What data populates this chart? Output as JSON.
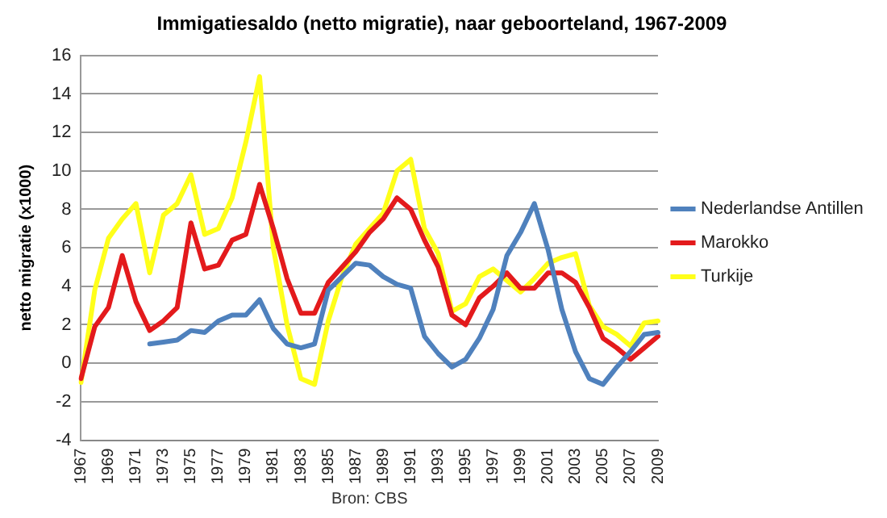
{
  "chart_data": {
    "type": "line",
    "title": "Immigatiesaldo (netto migratie), naar geboorteland, 1967-2009",
    "ylabel": "netto migratie (x1000)",
    "annotations": [
      "Bron: CBS"
    ],
    "categories": [
      "1967",
      null,
      "1969",
      null,
      "1971",
      null,
      "1973",
      null,
      "1975",
      null,
      "1977",
      null,
      "1979",
      null,
      "1981",
      null,
      "1983",
      null,
      "1985",
      null,
      "1987",
      null,
      "1989",
      null,
      "1991",
      null,
      "1993",
      null,
      "1995",
      null,
      "1997",
      null,
      "1999",
      null,
      "2001",
      null,
      "2003",
      null,
      "2005",
      null,
      "2007",
      null,
      "2009"
    ],
    "series": [
      {
        "name": "Nederlandse Antillen",
        "color": "#4f81bd",
        "values": [
          null,
          null,
          null,
          null,
          null,
          1.0,
          1.1,
          1.2,
          1.7,
          1.6,
          2.2,
          2.5,
          2.5,
          3.3,
          1.8,
          1.0,
          0.8,
          1.0,
          3.8,
          4.5,
          5.2,
          5.1,
          4.5,
          4.1,
          3.9,
          1.4,
          0.5,
          -0.2,
          0.2,
          1.3,
          2.8,
          5.6,
          6.8,
          8.3,
          5.9,
          2.8,
          0.6,
          -0.8,
          -1.1,
          -0.2,
          0.6,
          1.5,
          1.6
        ]
      },
      {
        "name": "Marokko",
        "color": "#e31a1c",
        "values": [
          -0.8,
          1.9,
          2.9,
          5.6,
          3.2,
          1.7,
          2.2,
          2.9,
          7.3,
          4.9,
          5.1,
          6.4,
          6.7,
          9.3,
          7.0,
          4.4,
          2.6,
          2.6,
          4.2,
          5.0,
          5.8,
          6.8,
          7.5,
          8.6,
          8.0,
          6.4,
          5.0,
          2.5,
          2.0,
          3.4,
          4.0,
          4.7,
          3.9,
          3.9,
          4.7,
          4.7,
          4.2,
          2.9,
          1.3,
          0.8,
          0.2,
          0.8,
          1.4
        ]
      },
      {
        "name": "Turkije",
        "color": "#ffff1a",
        "values": [
          -1.0,
          3.8,
          6.5,
          7.5,
          8.3,
          4.7,
          7.7,
          8.3,
          9.8,
          6.7,
          7.0,
          8.6,
          11.5,
          14.9,
          6.0,
          2.0,
          -0.8,
          -1.1,
          2.2,
          4.5,
          6.2,
          7.0,
          7.8,
          10.0,
          10.6,
          7.0,
          5.7,
          2.7,
          3.1,
          4.5,
          4.9,
          4.3,
          3.7,
          4.4,
          5.2,
          5.5,
          5.7,
          3.0,
          1.9,
          1.5,
          0.9,
          2.1,
          2.2
        ]
      }
    ],
    "ylim": [
      -4,
      16
    ],
    "yticks": [
      -4,
      -2,
      0,
      2,
      4,
      6,
      8,
      10,
      12,
      14,
      16
    ],
    "grid": "y",
    "legend": "right",
    "marker": "none",
    "line_style": "solid"
  }
}
